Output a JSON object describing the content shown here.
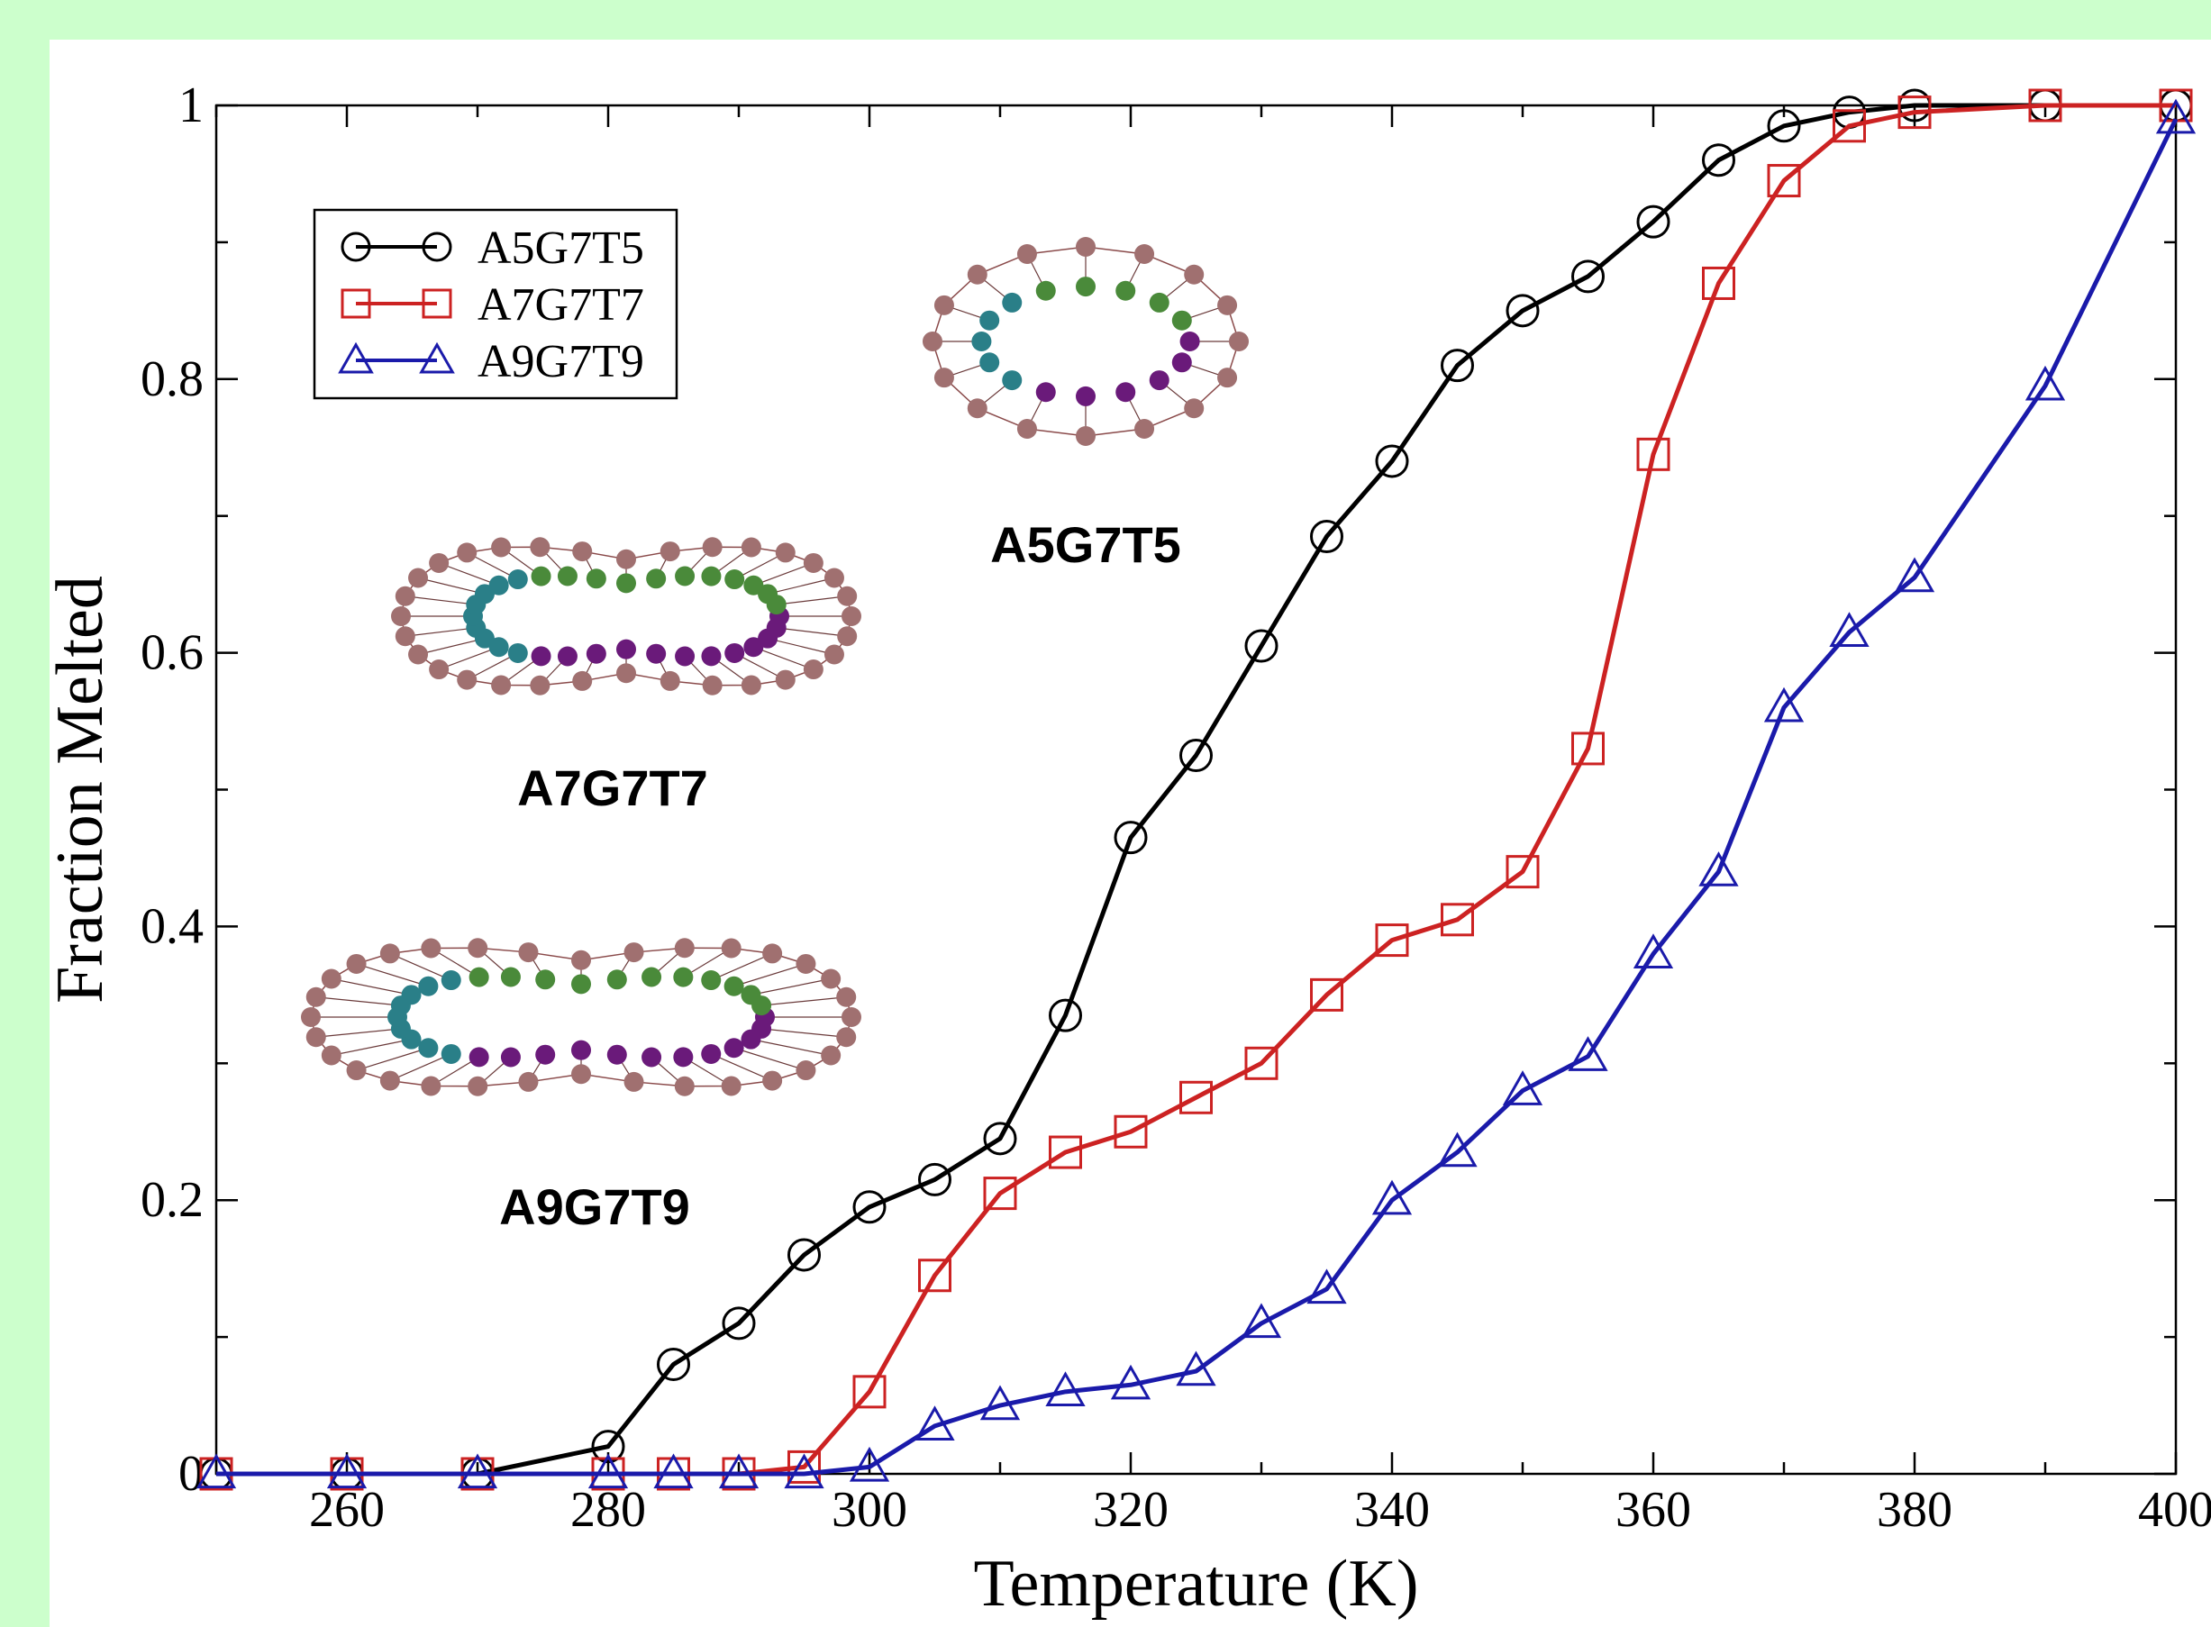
{
  "chart_data": {
    "type": "line",
    "xlabel": "Temperature (K)",
    "ylabel": "Fraction Melted",
    "xlim": [
      250,
      400
    ],
    "ylim": [
      0,
      1
    ],
    "x_ticks": [
      "260",
      "280",
      "300",
      "320",
      "340",
      "360",
      "380",
      "400"
    ],
    "y_ticks": [
      "0",
      "0.2",
      "0.4",
      "0.6",
      "0.8",
      "1"
    ],
    "grid": false,
    "legend_position": "top-left",
    "series": [
      {
        "name": "A5G7T5",
        "color": "#000000",
        "marker": "circle",
        "x": [
          250,
          260,
          270,
          280,
          285,
          290,
          295,
          300,
          305,
          310,
          315,
          320,
          325,
          330,
          335,
          340,
          345,
          350,
          355,
          360,
          365,
          370,
          375,
          380,
          390,
          400
        ],
        "y": [
          0,
          0,
          0,
          0.02,
          0.08,
          0.11,
          0.16,
          0.195,
          0.215,
          0.245,
          0.335,
          0.465,
          0.525,
          0.605,
          0.685,
          0.74,
          0.81,
          0.85,
          0.875,
          0.915,
          0.96,
          0.985,
          0.995,
          1.0,
          1.0,
          1.0
        ]
      },
      {
        "name": "A7G7T7",
        "color": "#cc2222",
        "marker": "square",
        "x": [
          250,
          260,
          270,
          280,
          285,
          290,
          295,
          300,
          305,
          310,
          315,
          320,
          325,
          330,
          335,
          340,
          345,
          350,
          355,
          360,
          365,
          370,
          375,
          380,
          390,
          400
        ],
        "y": [
          0,
          0,
          0,
          0,
          0,
          0,
          0.005,
          0.06,
          0.145,
          0.205,
          0.235,
          0.25,
          0.275,
          0.3,
          0.35,
          0.39,
          0.405,
          0.44,
          0.53,
          0.745,
          0.87,
          0.945,
          0.985,
          0.995,
          1.0,
          1.0
        ]
      },
      {
        "name": "A9G7T9",
        "color": "#1a1aaa",
        "marker": "triangle",
        "x": [
          250,
          260,
          270,
          280,
          285,
          290,
          295,
          300,
          305,
          310,
          315,
          320,
          325,
          330,
          335,
          340,
          345,
          350,
          355,
          360,
          365,
          370,
          375,
          380,
          390,
          400
        ],
        "y": [
          0,
          0,
          0,
          0,
          0,
          0,
          0,
          0.005,
          0.035,
          0.05,
          0.06,
          0.065,
          0.075,
          0.11,
          0.135,
          0.2,
          0.235,
          0.28,
          0.305,
          0.38,
          0.44,
          0.56,
          0.615,
          0.655,
          0.795,
          0.99
        ]
      }
    ],
    "annotations": [
      "A5G7T5",
      "A7G7T7",
      "A9G7T9"
    ]
  },
  "colors": {
    "background": "#ccffcc",
    "bead_outer": "#a07070",
    "bead_purple": "#6a1a7a",
    "bead_teal": "#2a7f88",
    "bead_green": "#4a8a3a"
  }
}
